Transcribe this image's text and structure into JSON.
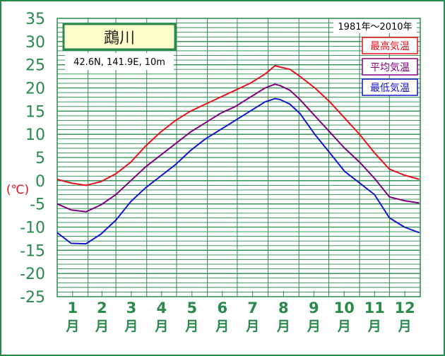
{
  "chart_data": {
    "type": "line",
    "title": "鵡川",
    "subtitle": "42.6N,  141.9E,  10m",
    "period": "1981年〜2010年",
    "ylabel": "(℃)",
    "ylim": [
      -25,
      35
    ],
    "yticks": [
      35,
      30,
      25,
      20,
      15,
      10,
      5,
      0,
      -5,
      -10,
      -15,
      -20,
      -25
    ],
    "xlim": [
      1,
      366
    ],
    "categories": [
      "1",
      "2",
      "3",
      "4",
      "5",
      "6",
      "7",
      "8",
      "9",
      "10",
      "11",
      "12"
    ],
    "month_suffix": "月",
    "grid": true,
    "legend_position": "top-right",
    "series": [
      {
        "name": "最高気温",
        "color": "#e8101e",
        "x": [
          1,
          15,
          30,
          45,
          60,
          75,
          90,
          105,
          120,
          135,
          150,
          165,
          180,
          195,
          210,
          220,
          225,
          235,
          245,
          260,
          275,
          290,
          305,
          320,
          335,
          350,
          365
        ],
        "values": [
          0.3,
          -0.5,
          -1.0,
          -0.2,
          1.5,
          4.0,
          7.5,
          10.5,
          13.0,
          15.0,
          16.5,
          18.0,
          19.5,
          21.0,
          23.0,
          24.8,
          24.5,
          24.0,
          22.5,
          20.0,
          17.0,
          13.5,
          10.0,
          6.0,
          2.5,
          1.2,
          0.3
        ]
      },
      {
        "name": "平均気温",
        "color": "#800080",
        "x": [
          1,
          15,
          30,
          45,
          60,
          75,
          90,
          105,
          120,
          135,
          150,
          165,
          180,
          195,
          210,
          220,
          225,
          235,
          245,
          260,
          275,
          290,
          305,
          320,
          335,
          350,
          365
        ],
        "values": [
          -5.0,
          -6.3,
          -6.7,
          -5.2,
          -3.0,
          0.0,
          3.0,
          5.5,
          8.0,
          10.5,
          12.5,
          14.5,
          16.0,
          18.0,
          20.0,
          20.8,
          20.5,
          19.5,
          17.5,
          14.0,
          10.5,
          7.0,
          4.0,
          0.5,
          -3.5,
          -4.3,
          -4.8
        ]
      },
      {
        "name": "最低気温",
        "color": "#1414d0",
        "x": [
          1,
          15,
          30,
          45,
          60,
          75,
          90,
          105,
          120,
          135,
          150,
          165,
          180,
          195,
          210,
          220,
          225,
          235,
          245,
          260,
          275,
          290,
          305,
          320,
          335,
          350,
          365
        ],
        "values": [
          -11.2,
          -13.5,
          -13.6,
          -11.5,
          -8.5,
          -4.5,
          -1.5,
          1.0,
          3.5,
          6.5,
          9.0,
          11.0,
          13.0,
          15.0,
          17.0,
          17.7,
          17.5,
          16.5,
          14.5,
          10.0,
          6.0,
          2.0,
          -0.5,
          -3.0,
          -8.0,
          -10.0,
          -11.2
        ]
      }
    ]
  },
  "colors": {
    "axis_text": "#2a8a4c",
    "grid": "#2a8a4c",
    "ylabel": "#e8101e",
    "title_box_bg": "#ffffcc",
    "border": "#2a8a4c"
  }
}
